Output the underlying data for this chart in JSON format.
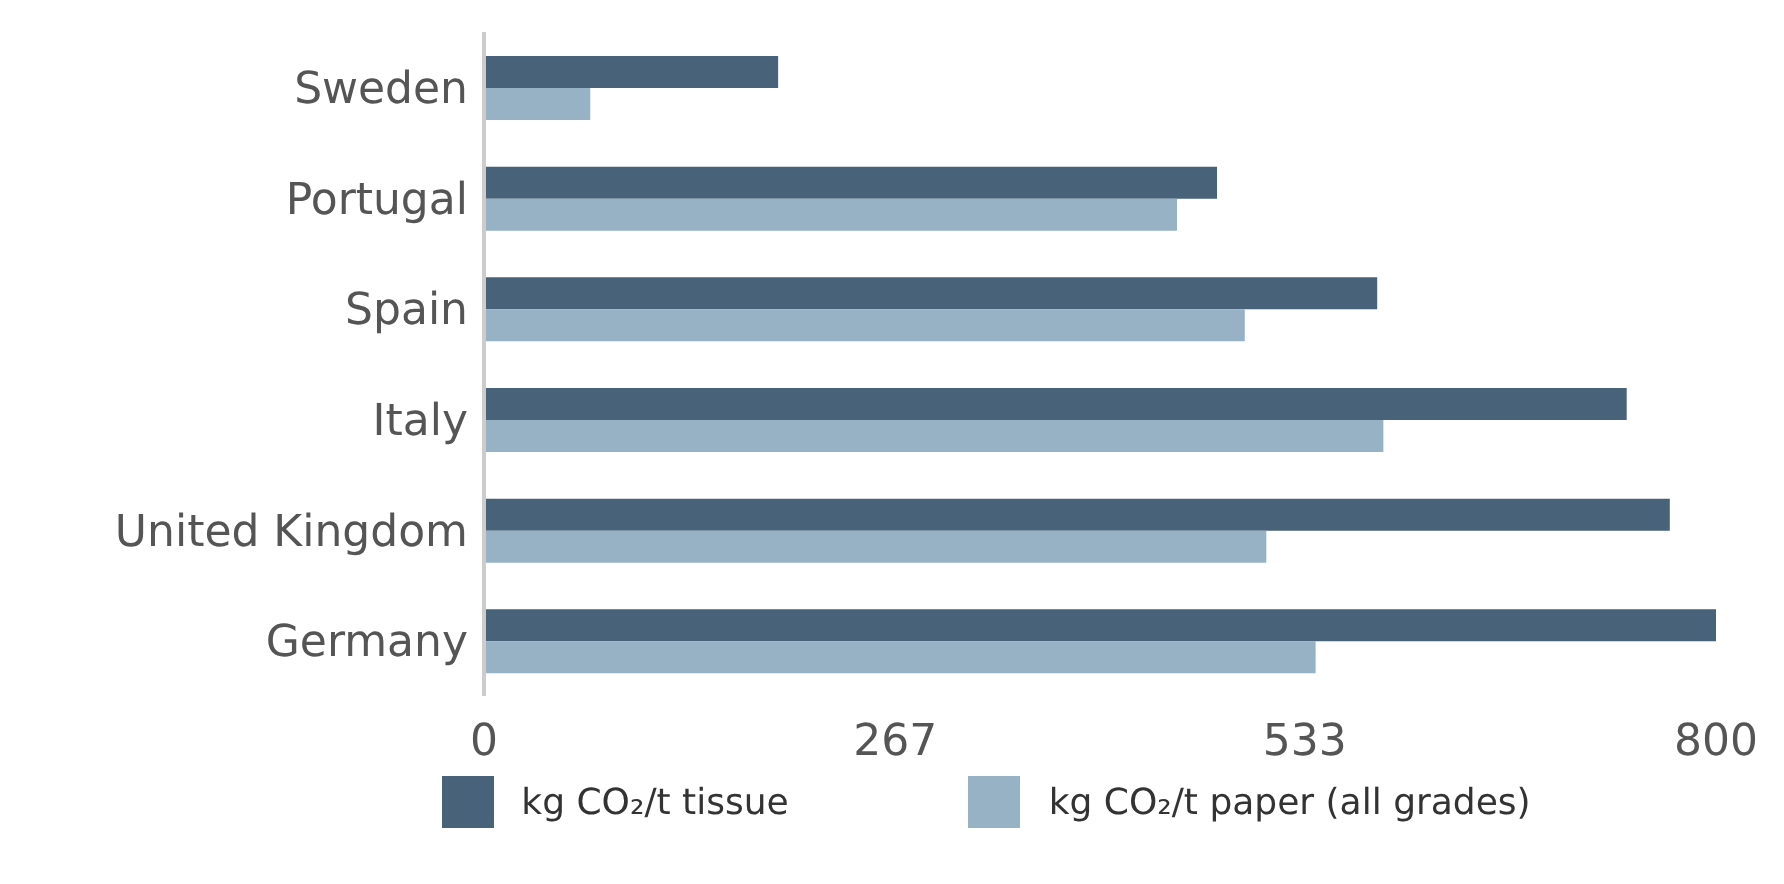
{
  "chart_data": {
    "type": "bar",
    "orientation": "horizontal",
    "categories": [
      "Sweden",
      "Portugal",
      "Spain",
      "Italy",
      "United Kingdom",
      "Germany"
    ],
    "series": [
      {
        "name": "kg CO₂/t tissue",
        "color": "#48627a",
        "values": [
          191,
          476,
          580,
          742,
          770,
          800
        ]
      },
      {
        "name": "kg CO₂/t paper (all grades)",
        "color": "#97b1c5",
        "values": [
          69,
          450,
          494,
          584,
          508,
          540
        ]
      }
    ],
    "xlim": [
      0,
      800
    ],
    "xticks": [
      0,
      267,
      533,
      800
    ],
    "grid": false,
    "legend": "bottom"
  }
}
